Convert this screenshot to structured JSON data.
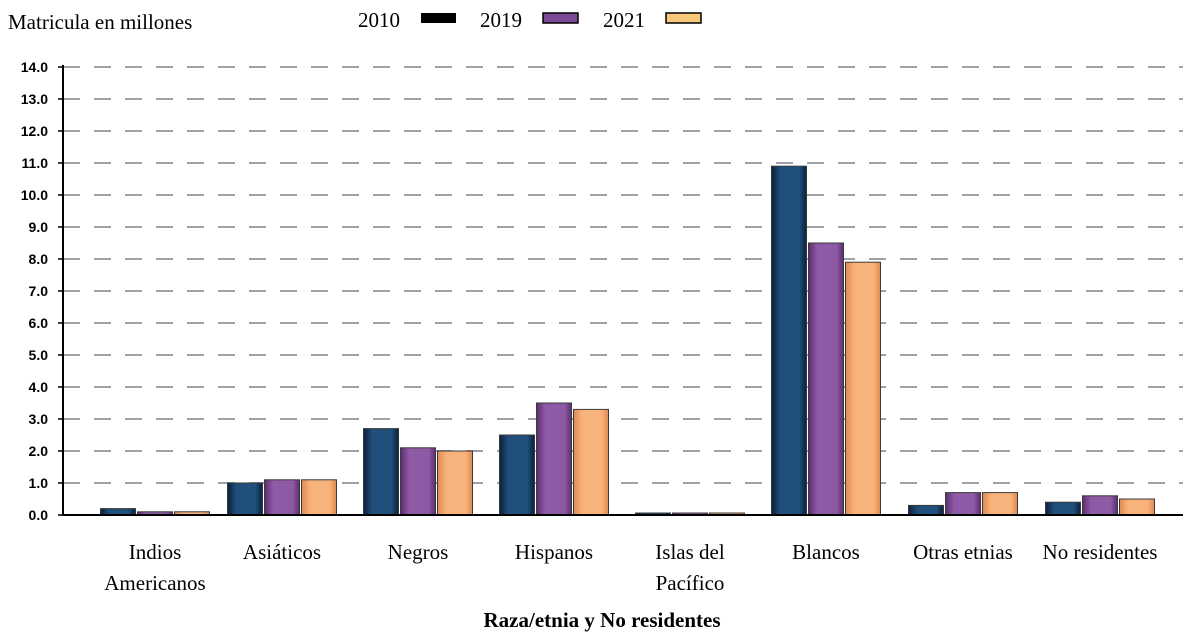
{
  "chart_data": {
    "type": "bar",
    "ylabel": "Matricula en millones",
    "xlabel": "Raza/etnia y No residentes",
    "categories": [
      [
        "Indios",
        "Americanos"
      ],
      [
        "Asiáticos"
      ],
      [
        "Negros"
      ],
      [
        "Hispanos"
      ],
      [
        "Islas del",
        "Pacífico"
      ],
      [
        "Blancos"
      ],
      [
        "Otras etnias"
      ],
      [
        "No residentes"
      ]
    ],
    "series": [
      {
        "name": "2010",
        "values": [
          0.2,
          1.0,
          2.7,
          2.5,
          0.05,
          10.9,
          0.3,
          0.4
        ]
      },
      {
        "name": "2019",
        "values": [
          0.1,
          1.1,
          2.1,
          3.5,
          0.05,
          8.5,
          0.7,
          0.6
        ]
      },
      {
        "name": "2021",
        "values": [
          0.1,
          1.1,
          2.0,
          3.3,
          0.05,
          7.9,
          0.7,
          0.5
        ]
      }
    ],
    "ylim": [
      0,
      14
    ],
    "yticks": [
      "0.0",
      "1.0",
      "2.0",
      "3.0",
      "4.0",
      "5.0",
      "6.0",
      "7.0",
      "8.0",
      "9.0",
      "10.0",
      "11.0",
      "12.0",
      "13.0",
      "14.0"
    ],
    "grid": true,
    "legend_position": "top",
    "colors": {
      "2010": {
        "light": "#1f4f7a",
        "dark": "#0b1f3d"
      },
      "2019": {
        "light": "#8e5aa5",
        "dark": "#5b2e70"
      },
      "2021": {
        "light": "#f8b27c",
        "dark": "#e08a4e"
      }
    },
    "legend_swatch_colors": {
      "2010": "#000000",
      "2019": "#7a4a95",
      "2021": "#f8c97a"
    },
    "grid_color": "#9ea2a8",
    "axis_color": "#000000"
  }
}
